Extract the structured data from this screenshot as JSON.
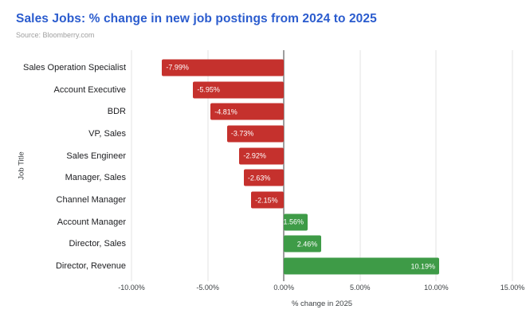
{
  "header": {
    "title": "Sales Jobs: % change in new job postings from 2024 to 2025",
    "source": "Source: Bloomberry.com"
  },
  "chart_data": {
    "type": "bar",
    "orientation": "horizontal",
    "title": "Sales Jobs: % change in new job postings from 2024 to 2025",
    "categories": [
      "Sales Operation Specialist",
      "Account Executive",
      "BDR",
      "VP, Sales",
      "Sales Engineer",
      "Manager, Sales",
      "Channel Manager",
      "Account Manager",
      "Director, Sales",
      "Director, Revenue"
    ],
    "values": [
      -7.99,
      -5.95,
      -4.81,
      -3.73,
      -2.92,
      -2.63,
      -2.15,
      1.56,
      2.46,
      10.19
    ],
    "value_labels": [
      "-7.99%",
      "-5.95%",
      "-4.81%",
      "-3.73%",
      "-2.92%",
      "-2.63%",
      "-2.15%",
      "1.56%",
      "2.46%",
      "10.19%"
    ],
    "xlabel": "% change in 2025",
    "ylabel": "Job Title",
    "xlim": [
      -10,
      15
    ],
    "x_ticks": [
      -10,
      -5,
      0,
      5,
      10,
      15
    ],
    "x_tick_labels": [
      "-10.00%",
      "-5.00%",
      "0.00%",
      "5.00%",
      "10.00%",
      "15.00%"
    ],
    "grid": true,
    "legend": "none",
    "colors": {
      "negative": "#c5312d",
      "positive": "#3e9b47",
      "title": "#2b5cce",
      "gridline": "#e3e3e3",
      "zero_line": "#9e9e9e"
    }
  }
}
